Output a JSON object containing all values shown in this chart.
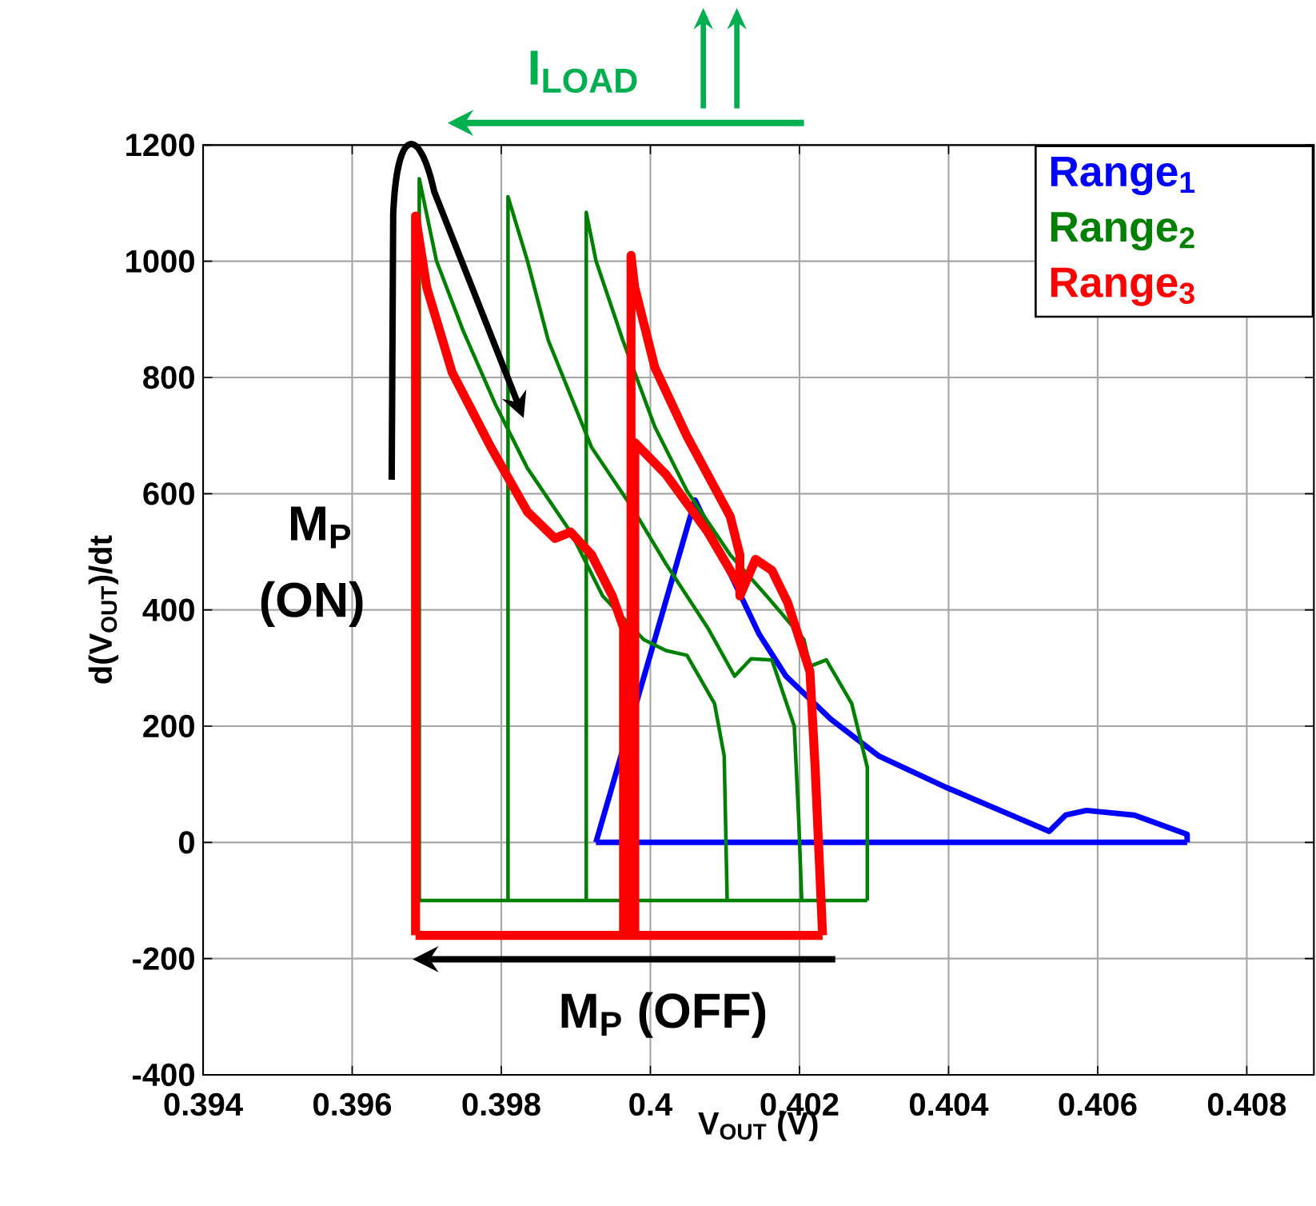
{
  "chart_data": {
    "type": "line",
    "xlabel": "V$_{OUT}$ (V)",
    "ylabel": "d(V$_{OUT}$)/dt",
    "xlim": [
      0.394,
      0.4089
    ],
    "ylim": [
      -400,
      1200
    ],
    "xticks": [
      0.394,
      0.396,
      0.398,
      0.4,
      0.402,
      0.404,
      0.406,
      0.408
    ],
    "yticks": [
      -400,
      -200,
      0,
      200,
      400,
      600,
      800,
      1000,
      1200
    ],
    "grid": true,
    "legend": "top right",
    "annotations": [
      "M$_{P}$",
      "(ON)",
      "M$_{P}$ (OFF)",
      "I$_{LOAD}$"
    ],
    "series": [
      {
        "name": "Range$_{1}$",
        "color": "#0000ff",
        "x": [
          0.39927,
          0.4006,
          0.40146,
          0.40182,
          0.40242,
          0.40306,
          0.40398,
          0.40535,
          0.40557,
          0.40585,
          0.40649,
          0.4072,
          0.4072
        ],
        "values": [
          0,
          589,
          358,
          286,
          212,
          149,
          94,
          19,
          47,
          55,
          47,
          14,
          0
        ]
      },
      {
        "color": "#0000ff",
        "x": [
          0.39927,
          0.4072
        ],
        "values": [
          0,
          0
        ]
      },
      {
        "name": "Range$_{2}$",
        "color": "#008000",
        "x": [
          0.3969,
          0.3969,
          0.39713,
          0.39749,
          0.39792,
          0.39835,
          0.39893,
          0.39936,
          0.39991,
          0.40021,
          0.40049,
          0.40086,
          0.40099,
          0.40103
        ],
        "values": [
          -100,
          1142,
          1001,
          880,
          754,
          644,
          534,
          424,
          349,
          330,
          322,
          239,
          149,
          -100
        ]
      },
      {
        "color": "#008000",
        "x": [
          0.39809,
          0.39809,
          0.39835,
          0.39863,
          0.39921,
          0.39979,
          0.40021,
          0.40077,
          0.40113,
          0.40135,
          0.40163,
          0.40193,
          0.40199,
          0.40203
        ],
        "values": [
          -100,
          1111,
          1001,
          864,
          680,
          569,
          479,
          369,
          286,
          316,
          314,
          200,
          39,
          -100
        ]
      },
      {
        "color": "#008000",
        "x": [
          0.39914,
          0.39914,
          0.39927,
          0.39963,
          0.40006,
          0.40049,
          0.40107,
          0.40156,
          0.40206,
          0.40214,
          0.40236,
          0.4027,
          0.40291,
          0.40291
        ],
        "values": [
          -100,
          1084,
          1001,
          864,
          715,
          605,
          495,
          424,
          349,
          303,
          314,
          239,
          129,
          -100
        ]
      },
      {
        "color": "#008000",
        "x": [
          0.3969,
          0.40291
        ],
        "values": [
          -100,
          -100
        ]
      },
      {
        "name": "Range$_{3}$",
        "color": "#ff0000",
        "x": [
          0.39685,
          0.39685,
          0.397,
          0.39734,
          0.39786,
          0.39835,
          0.39872,
          0.39893,
          0.39921,
          0.39949,
          0.39964,
          0.39964
        ],
        "values": [
          -160,
          1078,
          955,
          809,
          680,
          569,
          523,
          534,
          495,
          424,
          369,
          -160
        ]
      },
      {
        "color": "#ff0000",
        "x": [
          0.39974,
          0.39974,
          0.39979,
          0.40006,
          0.40049,
          0.40107,
          0.4012,
          0.4012,
          0.40141,
          0.40163,
          0.40184,
          0.40214,
          0.40221,
          0.40231
        ],
        "values": [
          -160,
          1010,
          955,
          817,
          699,
          561,
          495,
          424,
          487,
          468,
          413,
          294,
          129,
          -160
        ]
      },
      {
        "color": "#ff0000",
        "x": [
          0.39979,
          0.39979,
          0.40021,
          0.40077,
          0.4012
        ],
        "values": [
          -160,
          688,
          633,
          534,
          440
        ]
      },
      {
        "color": "#ff0000",
        "x": [
          0.39685,
          0.40231
        ],
        "values": [
          -160,
          -160
        ]
      }
    ]
  }
}
